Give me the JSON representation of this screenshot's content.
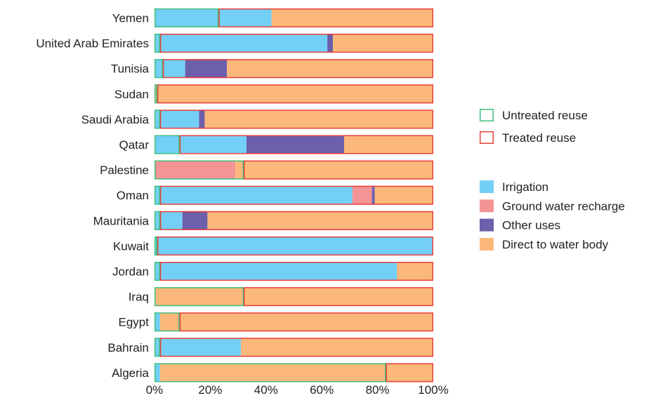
{
  "chart_data": {
    "type": "bar",
    "orientation": "horizontal",
    "stacked": true,
    "percent_axis": true,
    "categories": [
      "Yemen",
      "United Arab Emirates",
      "Tunisia",
      "Sudan",
      "Saudi Arabia",
      "Qatar",
      "Palestine",
      "Oman",
      "Mauritania",
      "Kuwait",
      "Jordan",
      "Iraq",
      "Egypt",
      "Bahrain",
      "Algeria"
    ],
    "series": [
      {
        "name": "Irrigation",
        "color": "#74cff6",
        "values": [
          42,
          62,
          11,
          0,
          16,
          33,
          0,
          71,
          10,
          100,
          87,
          0,
          2,
          31,
          2
        ]
      },
      {
        "name": "Ground water recharge",
        "color": "#f49494",
        "values": [
          0,
          0,
          0,
          0,
          0,
          0,
          29,
          7,
          0,
          0,
          0,
          0,
          0,
          0,
          0
        ]
      },
      {
        "name": "Other uses",
        "color": "#6c5fab",
        "values": [
          0,
          2,
          15,
          0,
          2,
          35,
          0,
          1,
          9,
          0,
          0,
          0,
          0,
          0,
          0
        ]
      },
      {
        "name": "Direct to water body",
        "color": "#fbb87a",
        "values": [
          58,
          36,
          74,
          100,
          82,
          32,
          71,
          21,
          81,
          0,
          13,
          100,
          98,
          69,
          98
        ]
      }
    ],
    "treatment": [
      {
        "name": "Untreated reuse",
        "color": "#3fbf7f",
        "values": [
          23,
          2,
          3,
          1,
          2,
          9,
          32,
          2,
          2,
          1,
          2,
          32,
          9,
          2,
          83
        ]
      },
      {
        "name": "Treated reuse",
        "color": "#e8413c",
        "values": [
          77,
          98,
          97,
          99,
          98,
          91,
          68,
          98,
          98,
          99,
          98,
          68,
          91,
          98,
          17
        ]
      }
    ],
    "x_ticks": [
      "0%",
      "20%",
      "40%",
      "60%",
      "80%",
      "100%"
    ],
    "xlim": [
      0,
      100
    ],
    "legend": {
      "placement": "right",
      "outline_entries": [
        "Untreated reuse",
        "Treated reuse"
      ],
      "fill_entries": [
        "Irrigation",
        "Ground water recharge",
        "Other uses",
        "Direct to water body"
      ]
    },
    "grid": false
  }
}
